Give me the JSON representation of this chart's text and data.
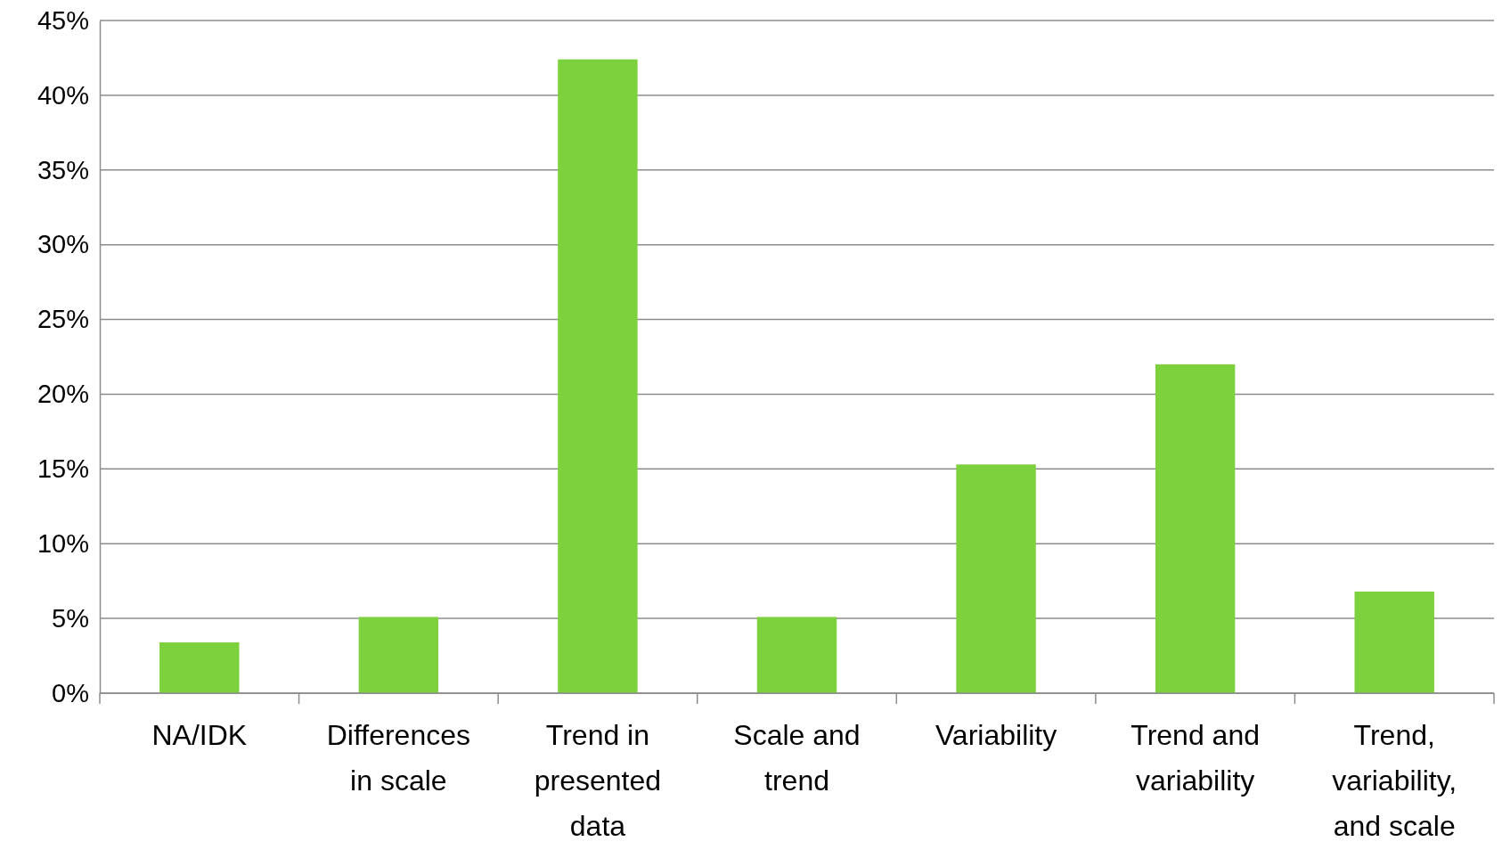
{
  "chart_data": {
    "type": "bar",
    "categories": [
      "NA/IDK",
      "Differences in scale",
      "Trend in presented data",
      "Scale and trend",
      "Variability",
      "Trend and variability",
      "Trend, variability, and scale"
    ],
    "values": [
      3.4,
      5.1,
      42.4,
      5.1,
      15.3,
      22.0,
      6.8
    ],
    "color": "#7dd13d",
    "ylim": [
      0,
      45
    ],
    "yticks": [
      {
        "value": 0,
        "label": "0%"
      },
      {
        "value": 5,
        "label": "5%"
      },
      {
        "value": 10,
        "label": "10%"
      },
      {
        "value": 15,
        "label": "15%"
      },
      {
        "value": 20,
        "label": "20%"
      },
      {
        "value": 25,
        "label": "25%"
      },
      {
        "value": 30,
        "label": "30%"
      },
      {
        "value": 35,
        "label": "35%"
      },
      {
        "value": 40,
        "label": "40%"
      },
      {
        "value": 45,
        "label": "45%"
      }
    ],
    "grid": "y"
  }
}
